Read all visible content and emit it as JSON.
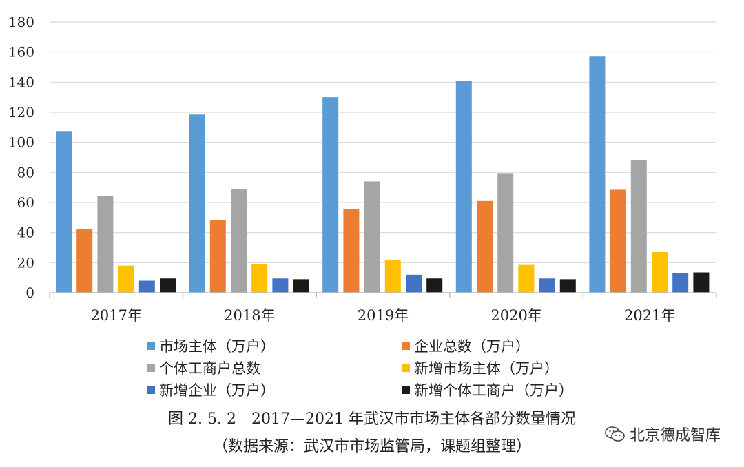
{
  "chart_data": {
    "type": "bar",
    "categories": [
      "2017年",
      "2018年",
      "2019年",
      "2020年",
      "2021年"
    ],
    "series": [
      {
        "name": "市场主体（万户）",
        "color": "#5b9bd5",
        "values": [
          107.5,
          118.5,
          130,
          141,
          157
        ]
      },
      {
        "name": "企业总数（万户）",
        "color": "#ed7d31",
        "values": [
          42.5,
          48.5,
          55.5,
          61,
          68.5
        ]
      },
      {
        "name": "个体工商户总数",
        "color": "#a5a5a5",
        "values": [
          64.5,
          69,
          74,
          79.5,
          88
        ]
      },
      {
        "name": "新增市场主体（万户）",
        "color": "#ffc000",
        "values": [
          18,
          19,
          21.5,
          18.5,
          27
        ]
      },
      {
        "name": "新增企业（万户）",
        "color": "#4472c4",
        "values": [
          8,
          9.5,
          12,
          9.5,
          13
        ]
      },
      {
        "name": "新增个体工商户（万户）",
        "color": "#1a1a1a",
        "values": [
          9.5,
          9,
          9.5,
          9,
          13.5
        ]
      }
    ],
    "ylim": [
      0,
      180
    ],
    "yticks": [
      0,
      20,
      40,
      60,
      80,
      100,
      120,
      140,
      160,
      180
    ],
    "grid": true,
    "legend_position": "bottom"
  },
  "caption": {
    "title": "图 2. 5. 2　2017—2021 年武汉市市场主体各部分数量情况",
    "source": "（数据来源：武汉市市场监管局，课题组整理）"
  },
  "watermark": {
    "text": "北京德成智库",
    "icon": "wechat-icon"
  }
}
